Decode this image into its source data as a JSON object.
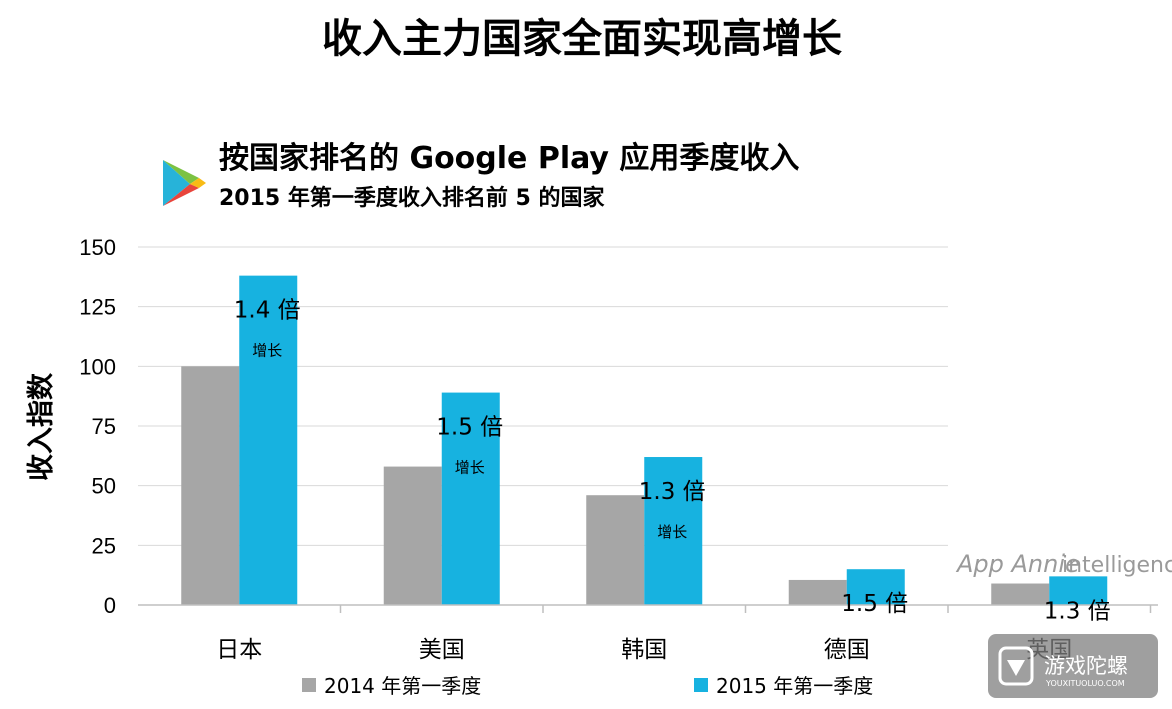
{
  "page_title": "收入主力国家全面实现高增长",
  "chart_data": {
    "type": "bar",
    "title": "按国家排名的 Google Play 应用季度收入",
    "subtitle": "2015 年第一季度收入排名前 5 的国家",
    "ylabel": "收入指数",
    "xlabel": "",
    "ylim": [
      0,
      150
    ],
    "yticks": [
      0,
      25,
      50,
      75,
      100,
      125,
      150
    ],
    "categories": [
      "日本",
      "美国",
      "韩国",
      "德国",
      "英国"
    ],
    "series": [
      {
        "name": "2014 年第一季度",
        "values": [
          100,
          58,
          46,
          10.5,
          9
        ],
        "color": "#a6a6a6"
      },
      {
        "name": "2015 年第一季度",
        "values": [
          138,
          89,
          62,
          15,
          12
        ],
        "color": "#17b2e0"
      }
    ],
    "growth_labels": [
      "1.4 倍",
      "1.5 倍",
      "1.3 倍",
      "1.5 倍",
      "1.3 倍"
    ],
    "growth_notes": [
      "增长",
      "增长",
      "增长",
      "",
      ""
    ],
    "legend_position": "bottom",
    "grid": true
  },
  "branding": {
    "logo_icon": "google-play-icon",
    "app_annie": "App Annie",
    "app_annie_sub": "intelligence",
    "watermark_text": "游戏陀螺",
    "watermark_url": "YOUXITUOLUO.COM"
  }
}
